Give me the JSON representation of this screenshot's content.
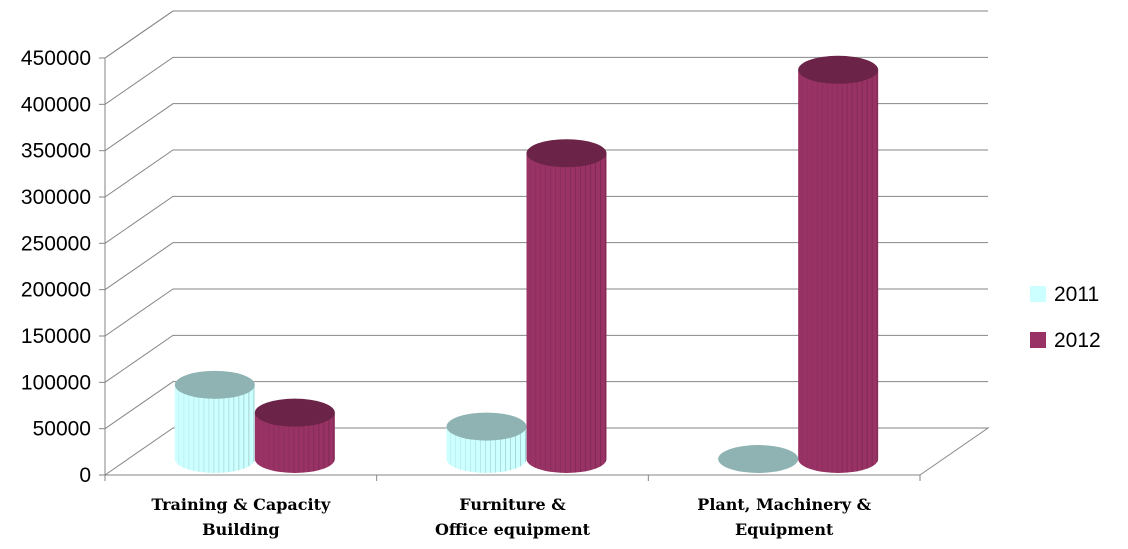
{
  "chart_data": {
    "type": "bar",
    "categories": [
      [
        "Training & Capacity",
        "Building"
      ],
      [
        "Furniture &",
        "Office equipment"
      ],
      [
        "Plant, Machinery  &",
        "Equipment"
      ]
    ],
    "series": [
      {
        "name": "2011",
        "values": [
          80000,
          35000,
          0
        ],
        "color": "#ccffff",
        "top_color": "#8fb3b3"
      },
      {
        "name": "2012",
        "values": [
          50000,
          330000,
          420000
        ],
        "color": "#993366",
        "top_color": "#6b2447"
      }
    ],
    "ylim": [
      0,
      450000
    ],
    "yticks": [
      "0",
      "50000",
      "100000",
      "150000",
      "200000",
      "250000",
      "300000",
      "350000",
      "400000",
      "450000"
    ],
    "grid": true,
    "legend": "right",
    "style": "3d-cylinder"
  }
}
